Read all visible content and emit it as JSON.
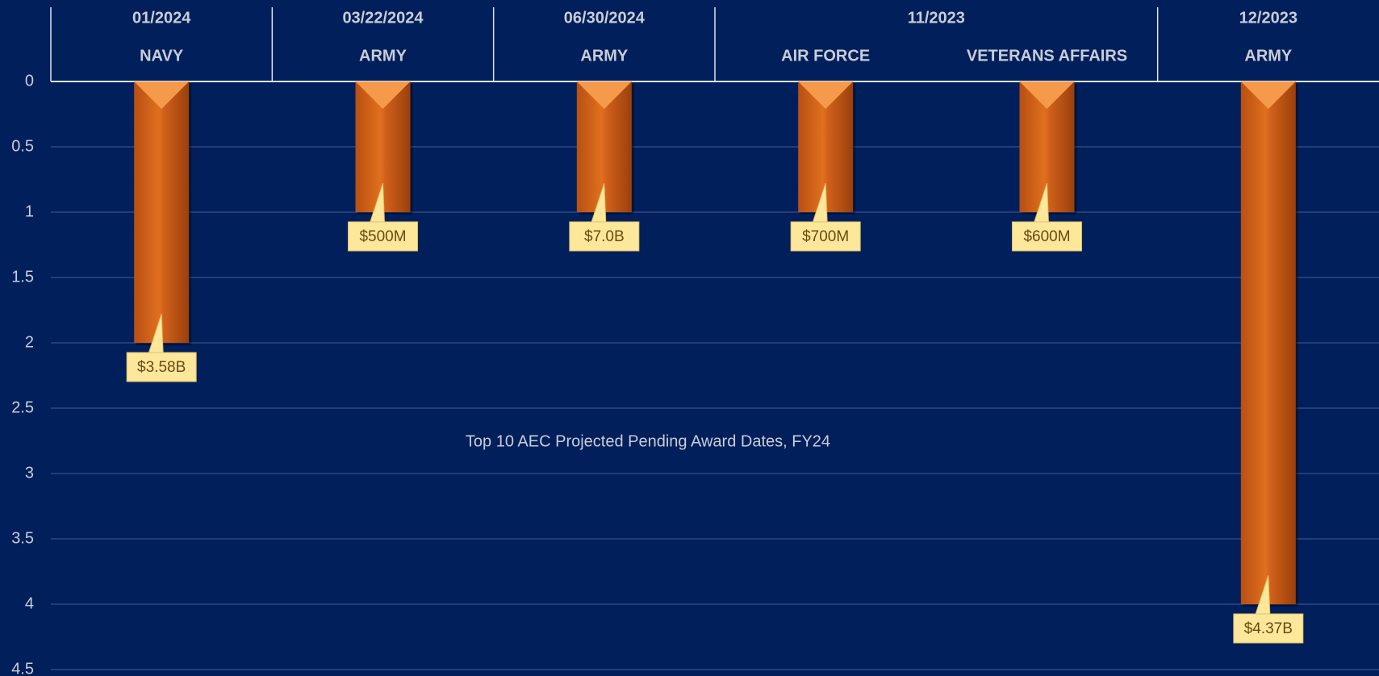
{
  "chart_data": {
    "type": "bar",
    "title": "Top 10 AEC Projected Pending Award Dates, FY24",
    "groups": [
      {
        "name": "01/2024",
        "categories": [
          "NAVY"
        ]
      },
      {
        "name": "03/22/2024",
        "categories": [
          "ARMY"
        ]
      },
      {
        "name": "06/30/2024",
        "categories": [
          "ARMY"
        ]
      },
      {
        "name": "11/2023",
        "categories": [
          "AIR FORCE",
          "VETERANS AFFAIRS"
        ]
      },
      {
        "name": "12/2023",
        "categories": [
          "ARMY"
        ]
      }
    ],
    "values": [
      2,
      1,
      1,
      1,
      1,
      4
    ],
    "annotations": [
      "$3.58B",
      "$500M",
      "$7.0B",
      "$700M",
      "$600M",
      "$4.37B"
    ],
    "color": "#d9651c",
    "ylim": [
      0,
      4.5
    ],
    "y_reversed": true,
    "yticks": [
      0,
      0.5,
      1,
      1.5,
      2,
      2.5,
      3,
      3.5,
      4,
      4.5
    ],
    "grid": true
  }
}
